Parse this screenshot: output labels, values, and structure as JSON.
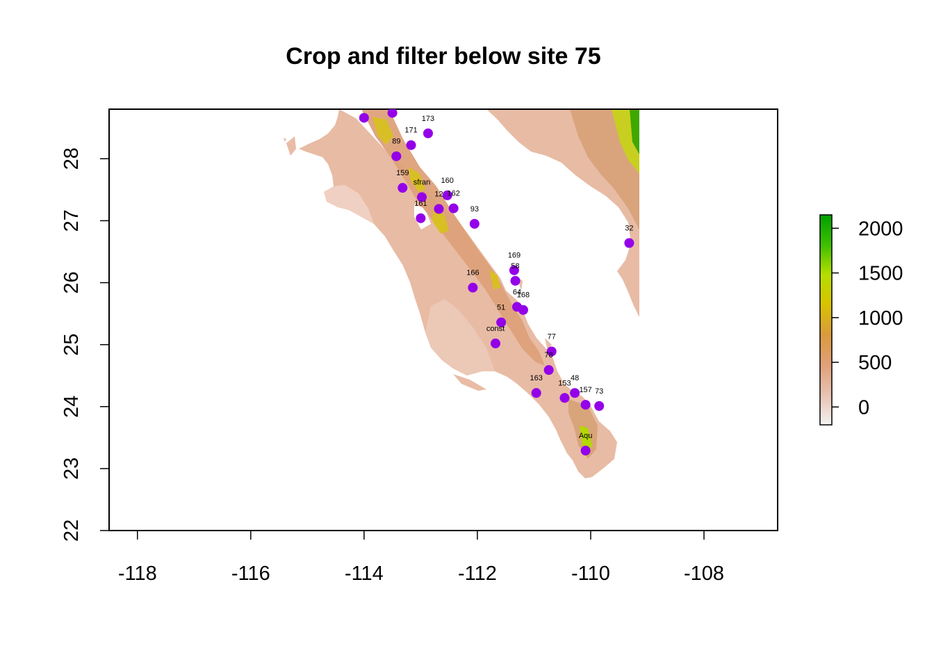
{
  "title": "Crop and filter below site 75",
  "x_axis": {
    "ticks": [
      -118,
      -116,
      -114,
      -112,
      -110,
      -108
    ],
    "range": [
      -118.5,
      -106.7
    ]
  },
  "y_axis": {
    "ticks": [
      22,
      23,
      24,
      25,
      26,
      27,
      28
    ],
    "range": [
      22.0,
      28.8
    ]
  },
  "raster_extent": {
    "lon": [
      -118.5,
      -109.0
    ],
    "lat": [
      22.0,
      28.8
    ]
  },
  "legend": {
    "ticks": [
      0,
      500,
      1000,
      1500,
      2000
    ],
    "range": [
      -200,
      2150
    ],
    "colors": [
      "#f2f2f2",
      "#e8c2b2",
      "#e0a07a",
      "#d99a3e",
      "#d8c200",
      "#b6df00",
      "#3fbf00",
      "#00a000"
    ]
  },
  "map_colors": {
    "low": "#e9bca6",
    "mid": "#d9a27a",
    "high": "#d9c000",
    "peak": "#a6d800",
    "top": "#2a9e00",
    "points": "#9400e8"
  },
  "sites": [
    {
      "label": "",
      "lon": -114.0,
      "lat": 28.66
    },
    {
      "label": "",
      "lon": -113.5,
      "lat": 28.74
    },
    {
      "label": "173",
      "lon": -112.87,
      "lat": 28.41
    },
    {
      "label": "171",
      "lon": -113.17,
      "lat": 28.22
    },
    {
      "label": "89",
      "lon": -113.43,
      "lat": 28.04
    },
    {
      "label": "159",
      "lon": -113.32,
      "lat": 27.53
    },
    {
      "label": "sfran",
      "lon": -112.98,
      "lat": 27.38
    },
    {
      "label": "160",
      "lon": -112.53,
      "lat": 27.41
    },
    {
      "label": "12",
      "lon": -112.68,
      "lat": 27.19
    },
    {
      "label": "162",
      "lon": -112.42,
      "lat": 27.2
    },
    {
      "label": "161",
      "lon": -113.0,
      "lat": 27.04
    },
    {
      "label": "93",
      "lon": -112.05,
      "lat": 26.95
    },
    {
      "label": "32",
      "lon": -109.32,
      "lat": 26.64
    },
    {
      "label": "169",
      "lon": -111.35,
      "lat": 26.2
    },
    {
      "label": "58",
      "lon": -111.33,
      "lat": 26.03
    },
    {
      "label": "166",
      "lon": -112.08,
      "lat": 25.92
    },
    {
      "label": "64",
      "lon": -111.3,
      "lat": 25.61
    },
    {
      "label": "168",
      "lon": -111.19,
      "lat": 25.56
    },
    {
      "label": "51",
      "lon": -111.58,
      "lat": 25.36
    },
    {
      "label": "const",
      "lon": -111.68,
      "lat": 25.02
    },
    {
      "label": "77",
      "lon": -110.69,
      "lat": 24.89
    },
    {
      "label": "78",
      "lon": -110.74,
      "lat": 24.59
    },
    {
      "label": "163",
      "lon": -110.96,
      "lat": 24.22
    },
    {
      "label": "153",
      "lon": -110.46,
      "lat": 24.14
    },
    {
      "label": "48",
      "lon": -110.28,
      "lat": 24.22
    },
    {
      "label": "157",
      "lon": -110.09,
      "lat": 24.03
    },
    {
      "label": "73",
      "lon": -109.85,
      "lat": 24.01
    },
    {
      "label": "Aqu",
      "lon": -110.09,
      "lat": 23.29
    }
  ]
}
